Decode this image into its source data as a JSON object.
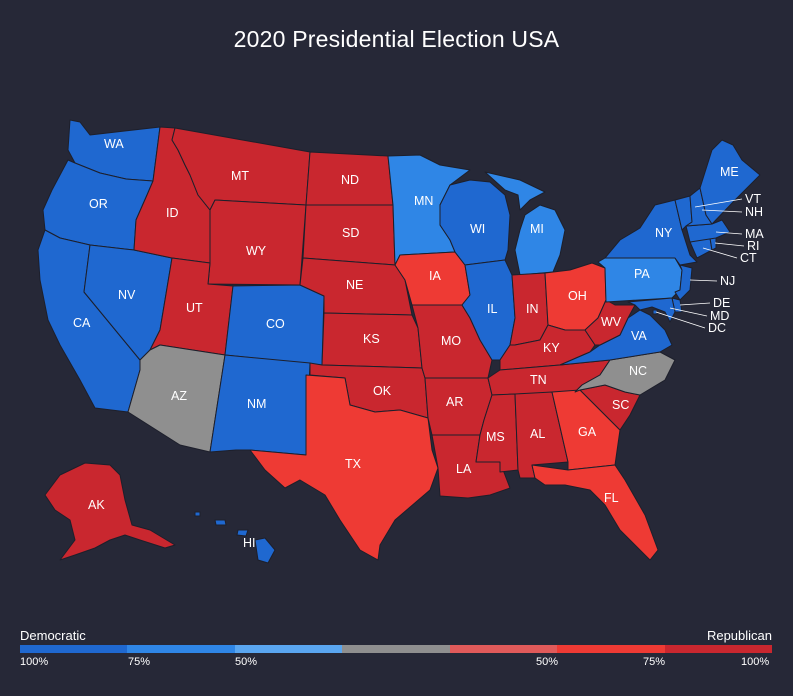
{
  "title": "2020 Presidential Election USA",
  "colors": {
    "dem_strong": "#1f68d0",
    "dem_mid": "#2f86e6",
    "dem_light": "#5aa6f0",
    "tossup": "#8f8f8f",
    "rep_light": "#e05a5a",
    "rep_mid": "#ee3a34",
    "rep_strong": "#c9272f"
  },
  "legend": {
    "left_label": "Democratic",
    "right_label": "Republican",
    "ticks": [
      "100%",
      "75%",
      "50%",
      "50%",
      "75%",
      "100%"
    ],
    "segments": [
      "dem_strong",
      "dem_mid",
      "dem_light",
      "tossup",
      "rep_light",
      "rep_mid",
      "rep_strong"
    ]
  },
  "states": [
    {
      "abbr": "WA",
      "result": "dem_strong"
    },
    {
      "abbr": "OR",
      "result": "dem_strong"
    },
    {
      "abbr": "CA",
      "result": "dem_strong"
    },
    {
      "abbr": "NV",
      "result": "dem_strong"
    },
    {
      "abbr": "ID",
      "result": "rep_strong"
    },
    {
      "abbr": "MT",
      "result": "rep_strong"
    },
    {
      "abbr": "WY",
      "result": "rep_strong"
    },
    {
      "abbr": "UT",
      "result": "rep_strong"
    },
    {
      "abbr": "AZ",
      "result": "tossup"
    },
    {
      "abbr": "CO",
      "result": "dem_strong"
    },
    {
      "abbr": "NM",
      "result": "dem_strong"
    },
    {
      "abbr": "ND",
      "result": "rep_strong"
    },
    {
      "abbr": "SD",
      "result": "rep_strong"
    },
    {
      "abbr": "NE",
      "result": "rep_strong"
    },
    {
      "abbr": "KS",
      "result": "rep_strong"
    },
    {
      "abbr": "OK",
      "result": "rep_strong"
    },
    {
      "abbr": "TX",
      "result": "rep_mid"
    },
    {
      "abbr": "MN",
      "result": "dem_mid"
    },
    {
      "abbr": "IA",
      "result": "rep_mid"
    },
    {
      "abbr": "MO",
      "result": "rep_strong"
    },
    {
      "abbr": "AR",
      "result": "rep_strong"
    },
    {
      "abbr": "LA",
      "result": "rep_strong"
    },
    {
      "abbr": "WI",
      "result": "dem_strong"
    },
    {
      "abbr": "IL",
      "result": "dem_strong"
    },
    {
      "abbr": "MI",
      "result": "dem_mid"
    },
    {
      "abbr": "IN",
      "result": "rep_strong"
    },
    {
      "abbr": "OH",
      "result": "rep_mid"
    },
    {
      "abbr": "KY",
      "result": "rep_strong"
    },
    {
      "abbr": "TN",
      "result": "rep_strong"
    },
    {
      "abbr": "MS",
      "result": "rep_strong"
    },
    {
      "abbr": "AL",
      "result": "rep_strong"
    },
    {
      "abbr": "GA",
      "result": "rep_mid"
    },
    {
      "abbr": "FL",
      "result": "rep_mid"
    },
    {
      "abbr": "SC",
      "result": "rep_strong"
    },
    {
      "abbr": "NC",
      "result": "tossup"
    },
    {
      "abbr": "VA",
      "result": "dem_strong"
    },
    {
      "abbr": "WV",
      "result": "rep_strong"
    },
    {
      "abbr": "PA",
      "result": "dem_mid"
    },
    {
      "abbr": "NY",
      "result": "dem_strong"
    },
    {
      "abbr": "ME",
      "result": "dem_strong"
    },
    {
      "abbr": "VT",
      "result": "dem_strong"
    },
    {
      "abbr": "NH",
      "result": "dem_strong"
    },
    {
      "abbr": "MA",
      "result": "dem_strong"
    },
    {
      "abbr": "RI",
      "result": "dem_strong"
    },
    {
      "abbr": "CT",
      "result": "dem_strong"
    },
    {
      "abbr": "NJ",
      "result": "dem_strong"
    },
    {
      "abbr": "DE",
      "result": "dem_strong"
    },
    {
      "abbr": "MD",
      "result": "dem_strong"
    },
    {
      "abbr": "DC",
      "result": "dem_strong"
    },
    {
      "abbr": "AK",
      "result": "rep_strong"
    },
    {
      "abbr": "HI",
      "result": "dem_strong"
    }
  ]
}
